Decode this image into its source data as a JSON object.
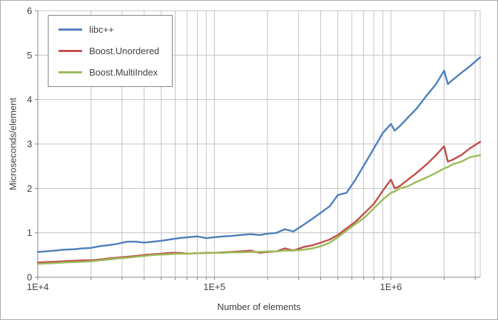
{
  "chart_data": {
    "type": "line",
    "title": "",
    "xlabel": "Number of elements",
    "ylabel": "Microseconds/element",
    "x_scale": "log",
    "xlim": [
      10000,
      3200000
    ],
    "ylim": [
      0,
      6
    ],
    "x_ticks": [
      {
        "value": 10000,
        "label": "1E+4"
      },
      {
        "value": 100000,
        "label": "1E+5"
      },
      {
        "value": 1000000,
        "label": "1E+6"
      }
    ],
    "y_ticks": [
      0,
      1,
      2,
      3,
      4,
      5,
      6
    ],
    "grid": "both",
    "legend_position": "top-left",
    "x": [
      10000,
      11000,
      12500,
      14000,
      16000,
      18000,
      20000,
      22500,
      25000,
      28000,
      32000,
      36000,
      40000,
      45000,
      50000,
      56000,
      63000,
      71000,
      80000,
      90000,
      100000,
      112000,
      125000,
      140000,
      160000,
      180000,
      200000,
      225000,
      250000,
      280000,
      320000,
      360000,
      400000,
      450000,
      500000,
      560000,
      630000,
      710000,
      800000,
      900000,
      1000000,
      1050000,
      1120000,
      1250000,
      1400000,
      1600000,
      1800000,
      2000000,
      2100000,
      2250000,
      2500000,
      2800000,
      3200000
    ],
    "series": [
      {
        "name": "libc++",
        "color": "#4f81bd",
        "values": [
          0.57,
          0.58,
          0.6,
          0.62,
          0.63,
          0.65,
          0.66,
          0.7,
          0.72,
          0.75,
          0.8,
          0.8,
          0.78,
          0.8,
          0.82,
          0.85,
          0.88,
          0.9,
          0.92,
          0.88,
          0.9,
          0.92,
          0.93,
          0.95,
          0.97,
          0.95,
          0.98,
          1.0,
          1.08,
          1.03,
          1.18,
          1.32,
          1.45,
          1.6,
          1.85,
          1.9,
          2.2,
          2.55,
          2.9,
          3.25,
          3.45,
          3.3,
          3.4,
          3.6,
          3.8,
          4.1,
          4.35,
          4.65,
          4.35,
          4.45,
          4.6,
          4.75,
          4.95
        ]
      },
      {
        "name": "Boost.Unordered",
        "color": "#c0504d",
        "values": [
          0.33,
          0.34,
          0.35,
          0.36,
          0.37,
          0.38,
          0.38,
          0.4,
          0.42,
          0.44,
          0.46,
          0.48,
          0.5,
          0.52,
          0.53,
          0.55,
          0.55,
          0.53,
          0.54,
          0.55,
          0.55,
          0.56,
          0.57,
          0.58,
          0.6,
          0.55,
          0.57,
          0.58,
          0.65,
          0.6,
          0.68,
          0.72,
          0.78,
          0.85,
          0.95,
          1.1,
          1.25,
          1.45,
          1.65,
          1.95,
          2.2,
          2.0,
          2.05,
          2.2,
          2.35,
          2.55,
          2.75,
          2.95,
          2.6,
          2.65,
          2.75,
          2.9,
          3.05
        ]
      },
      {
        "name": "Boost.MultiIndex",
        "color": "#9bbb59",
        "values": [
          0.3,
          0.31,
          0.32,
          0.33,
          0.34,
          0.35,
          0.36,
          0.38,
          0.4,
          0.42,
          0.44,
          0.46,
          0.48,
          0.5,
          0.51,
          0.52,
          0.53,
          0.53,
          0.54,
          0.54,
          0.55,
          0.55,
          0.56,
          0.56,
          0.57,
          0.57,
          0.58,
          0.58,
          0.6,
          0.6,
          0.62,
          0.65,
          0.7,
          0.78,
          0.9,
          1.05,
          1.2,
          1.35,
          1.55,
          1.75,
          1.9,
          1.93,
          2.0,
          2.05,
          2.15,
          2.25,
          2.35,
          2.45,
          2.48,
          2.55,
          2.6,
          2.7,
          2.75
        ]
      }
    ]
  },
  "colors": {
    "grid": "#c3c3c3",
    "axis": "#868686",
    "tick": "#868686",
    "text": "#3f3f3f",
    "frame_border": "#a6a6a6",
    "background": "#ffffff"
  }
}
